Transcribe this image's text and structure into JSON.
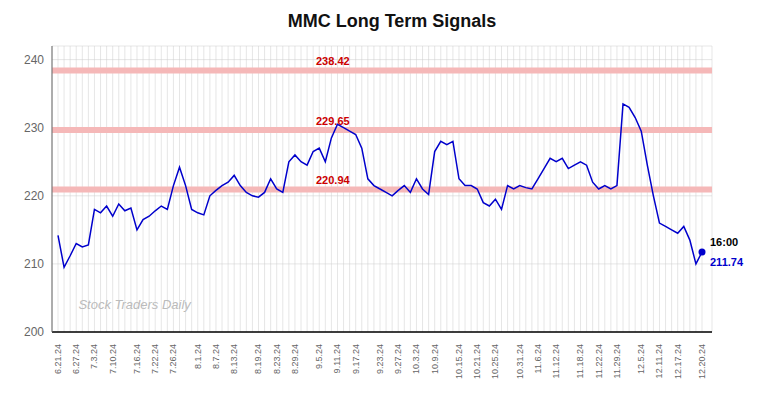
{
  "chart_data": {
    "type": "line",
    "title": "MMC Long Term Signals",
    "color": "#0000cc",
    "grid": true,
    "ylim": [
      200,
      242
    ],
    "yticks": [
      200,
      210,
      220,
      230,
      240
    ],
    "categories": [
      "6.21.24",
      null,
      null,
      "6.27.24",
      null,
      null,
      "7.3.24",
      null,
      null,
      "7.10.24",
      null,
      null,
      null,
      "7.16.24",
      null,
      null,
      "7.22.24",
      null,
      null,
      "7.26.24",
      null,
      null,
      null,
      "8.1.24",
      null,
      null,
      "8.7.24",
      null,
      null,
      "8.13.24",
      null,
      null,
      null,
      "8.19.24",
      null,
      null,
      "8.23.24",
      null,
      null,
      "8.29.24",
      null,
      null,
      null,
      "9.5.24",
      null,
      null,
      "9.11.24",
      null,
      null,
      "9.17.24",
      null,
      null,
      null,
      "9.23.24",
      null,
      null,
      "9.27.24",
      null,
      null,
      "10.3.24",
      null,
      null,
      "10.9.24",
      null,
      null,
      null,
      "10.15.24",
      null,
      null,
      "10.21.24",
      null,
      null,
      "10.25.24",
      null,
      null,
      null,
      "10.31.24",
      null,
      null,
      "11.6.24",
      null,
      null,
      "11.12.24",
      null,
      null,
      null,
      "11.18.24",
      null,
      null,
      "11.22.24",
      null,
      null,
      "11.29.24",
      null,
      null,
      null,
      "12.5.24",
      null,
      null,
      "12.11.24",
      null,
      null,
      "12.17.24",
      null,
      null,
      null,
      "12.20.24"
    ],
    "values": [
      214.2,
      209.5,
      211.2,
      213.0,
      212.5,
      212.8,
      218.0,
      217.5,
      218.5,
      217.0,
      218.8,
      217.8,
      218.2,
      215.0,
      216.5,
      217.0,
      217.8,
      218.5,
      218.0,
      221.5,
      224.2,
      221.5,
      218.0,
      217.5,
      217.2,
      220.0,
      220.8,
      221.5,
      222.0,
      223.0,
      221.5,
      220.5,
      220.0,
      219.8,
      220.5,
      222.5,
      221.0,
      220.5,
      225.0,
      226.0,
      225.0,
      224.5,
      226.5,
      227.0,
      225.0,
      228.5,
      230.5,
      230.0,
      229.5,
      229.0,
      227.0,
      222.5,
      221.5,
      221.0,
      220.5,
      220.0,
      220.8,
      221.5,
      220.5,
      222.5,
      221.0,
      220.2,
      226.5,
      228.0,
      227.5,
      228.0,
      222.5,
      221.5,
      221.5,
      221.0,
      219.0,
      218.5,
      219.5,
      218.0,
      221.5,
      221.0,
      221.5,
      221.2,
      221.0,
      222.5,
      224.0,
      225.5,
      225.0,
      225.5,
      224.0,
      224.5,
      225.0,
      224.5,
      222.0,
      221.0,
      221.5,
      221.0,
      221.5,
      233.5,
      233.0,
      231.5,
      229.5,
      224.5,
      220.0,
      216.0,
      215.5,
      215.0,
      214.5,
      215.5,
      213.5,
      210.0,
      211.74
    ],
    "annotations": [
      {
        "y": 238.42,
        "label": "238.42",
        "color": "#f5b8b8",
        "label_color": "#cc0000"
      },
      {
        "y": 229.65,
        "label": "229.65",
        "color": "#f5b8b8",
        "label_color": "#cc0000"
      },
      {
        "y": 220.94,
        "label": "220.94",
        "color": "#f5b8b8",
        "label_color": "#cc0000"
      }
    ],
    "watermark": {
      "text": "Stock Traders Daily",
      "color": "#bbbbbb"
    },
    "end_label": {
      "text": "16:00",
      "value_label": "211.74"
    }
  }
}
